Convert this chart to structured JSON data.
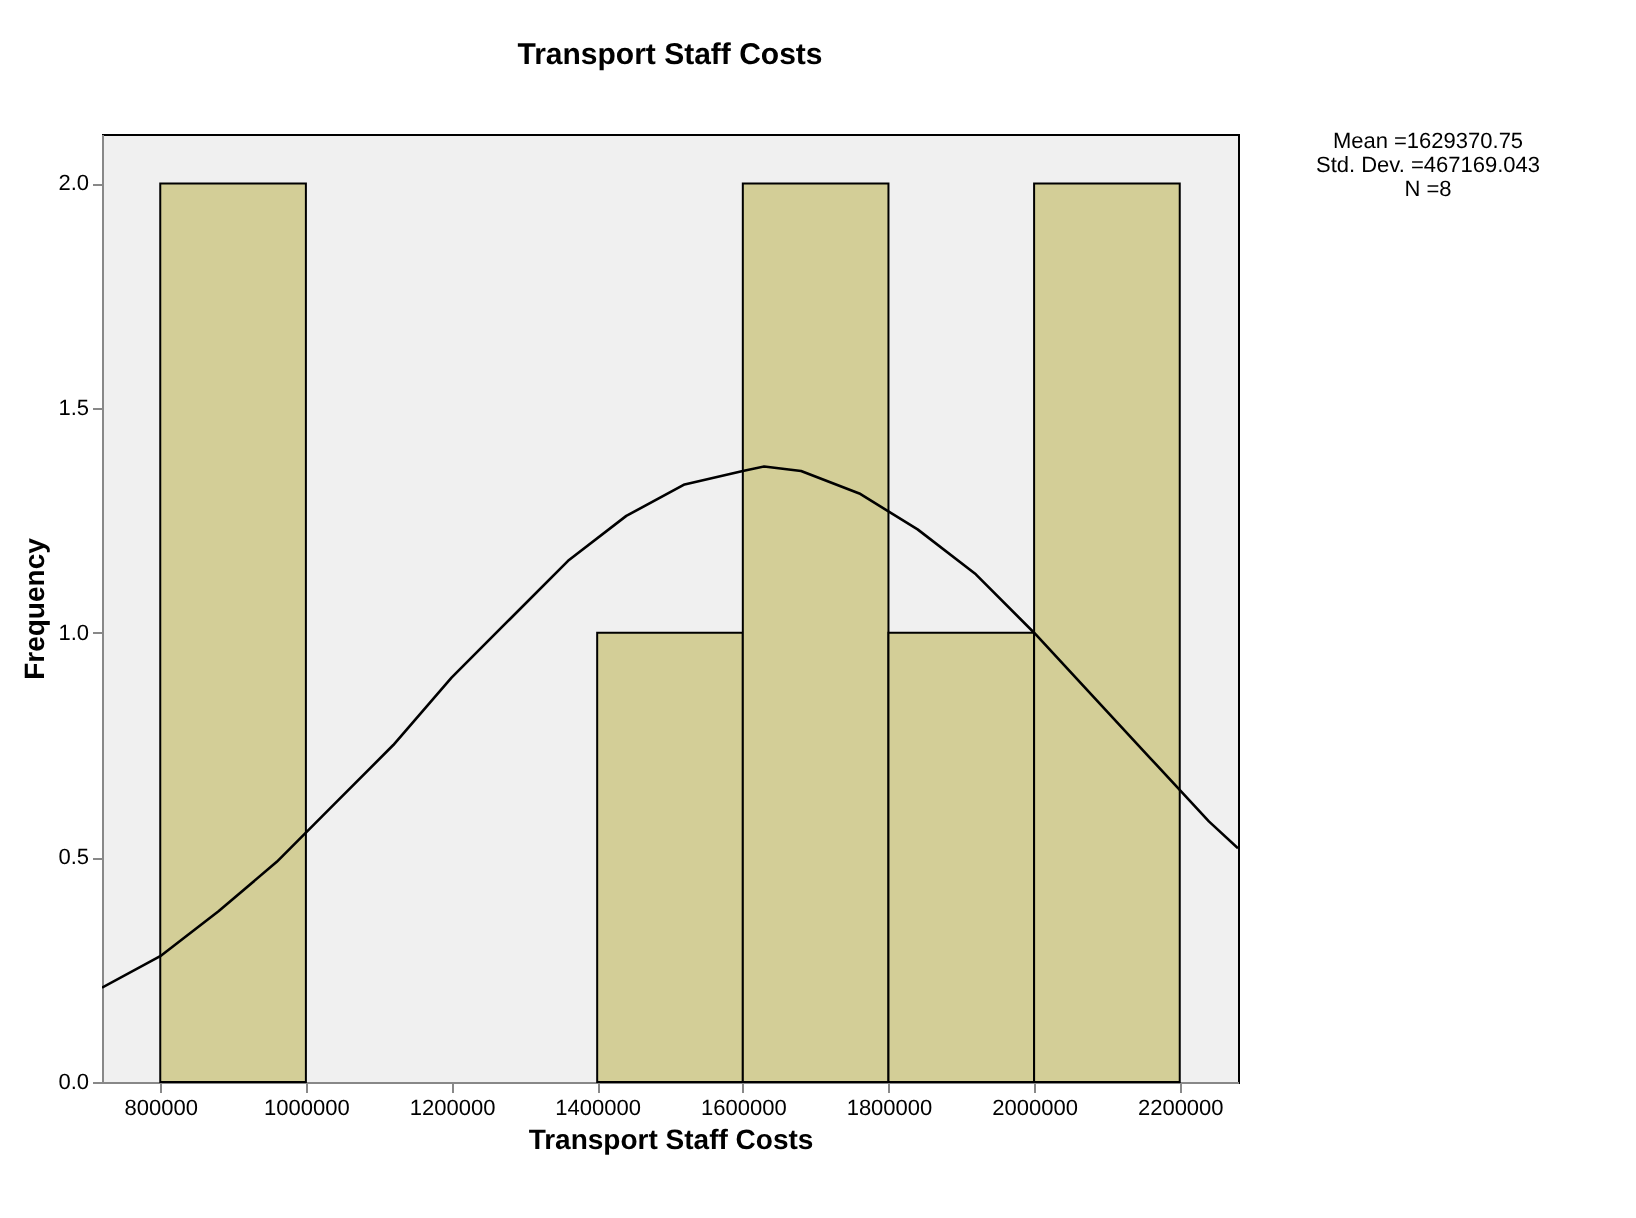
{
  "chart_data": {
    "type": "histogram",
    "title": "Transport Staff Costs",
    "xlabel": "Transport Staff Costs",
    "ylabel": "Frequency",
    "bins": [
      800000,
      1000000,
      1200000,
      1400000,
      1600000,
      1800000,
      2000000,
      2200000
    ],
    "values": [
      2,
      0,
      0,
      1,
      2,
      1,
      2
    ],
    "color": "#d3ce97",
    "series": [
      {
        "type": "line",
        "color": "#000000",
        "x": [
          720000,
          800000,
          880000,
          960000,
          1040000,
          1120000,
          1200000,
          1280000,
          1360000,
          1440000,
          1520000,
          1600000,
          1629371,
          1680000,
          1760000,
          1840000,
          1920000,
          2000000,
          2080000,
          2160000,
          2240000,
          2280000
        ],
        "values": [
          0.21,
          0.28,
          0.38,
          0.49,
          0.62,
          0.75,
          0.9,
          1.03,
          1.16,
          1.26,
          1.33,
          1.36,
          1.37,
          1.36,
          1.31,
          1.23,
          1.13,
          1.0,
          0.86,
          0.72,
          0.58,
          0.52
        ]
      }
    ],
    "xlim": [
      720000,
      2280000
    ],
    "xticks": [
      800000,
      1000000,
      1200000,
      1400000,
      1600000,
      1800000,
      2000000,
      2200000
    ],
    "ylim": [
      0,
      2.11
    ],
    "yticks": [
      {
        "value": 0,
        "label": "0.0"
      },
      {
        "value": 0.5,
        "label": "0.5"
      },
      {
        "value": 1,
        "label": "1.0"
      },
      {
        "value": 1.5,
        "label": "1.5"
      },
      {
        "value": 2,
        "label": "2.0"
      }
    ],
    "grid": false,
    "annotations": [
      "Mean =1629370.75",
      "Std. Dev. =467169.043",
      "N =8"
    ]
  }
}
